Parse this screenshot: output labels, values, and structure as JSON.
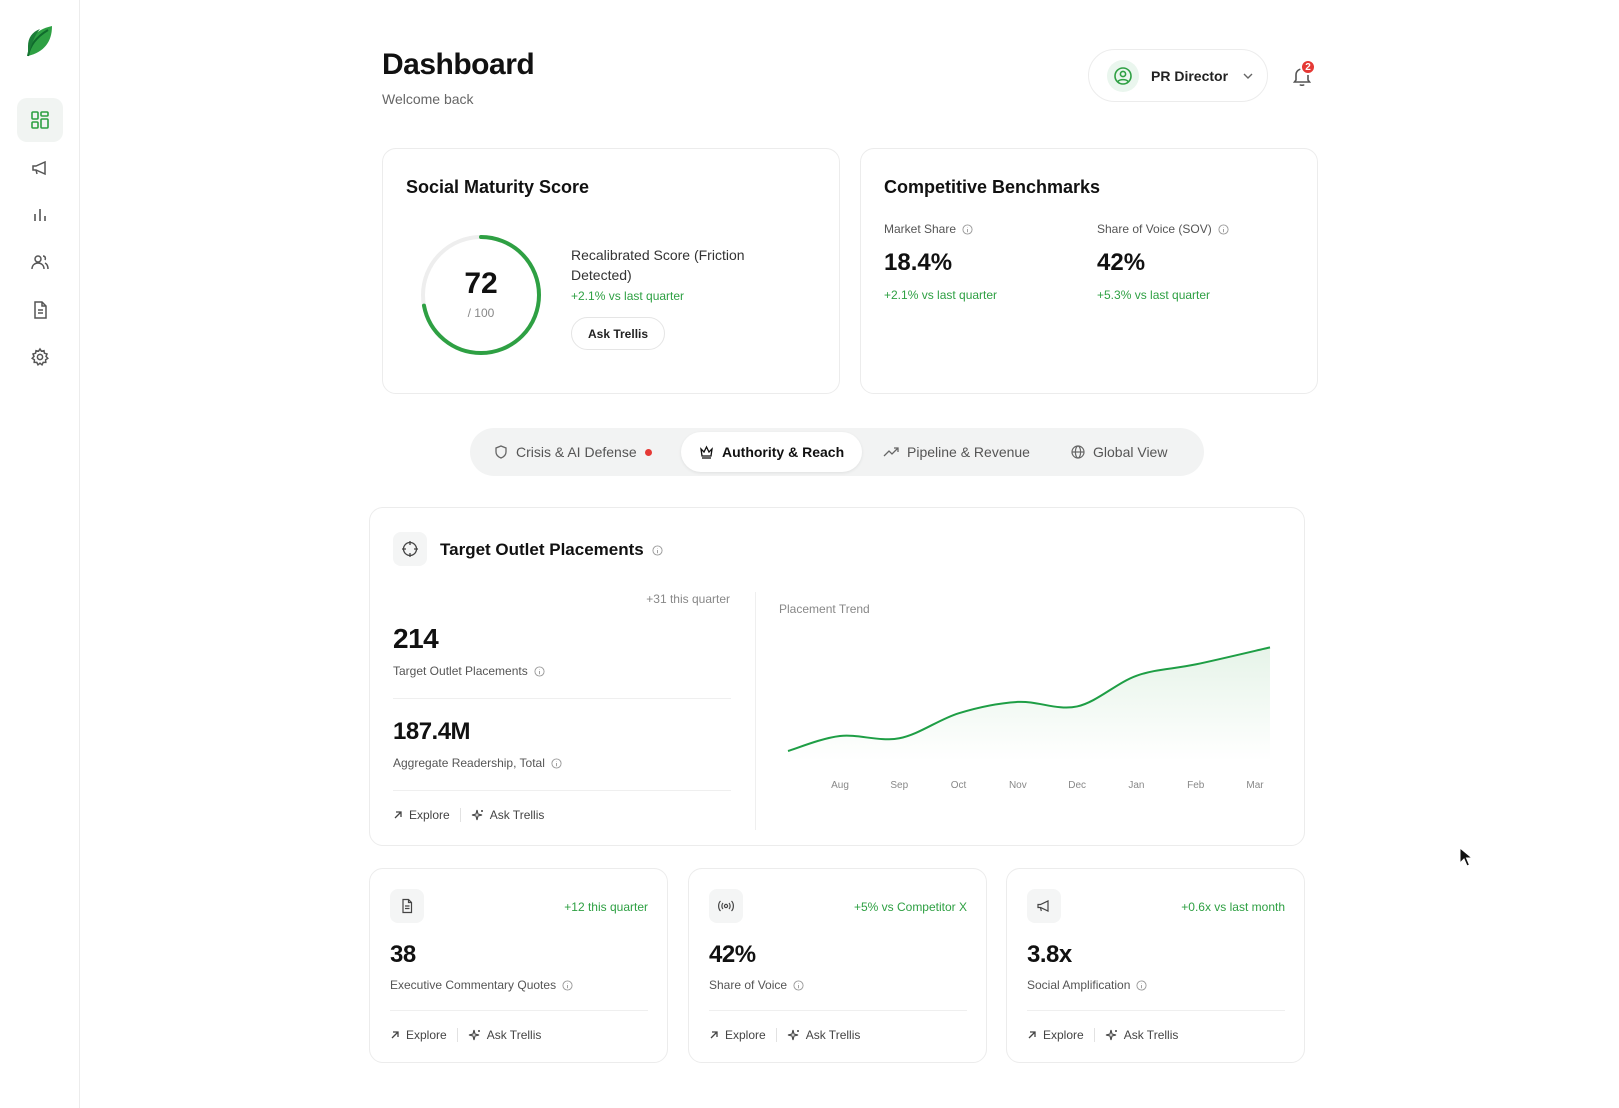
{
  "header": {
    "title": "Dashboard",
    "subtitle": "Welcome back"
  },
  "user": {
    "role": "PR Director",
    "notification_count": "2"
  },
  "sidebar": {
    "items": [
      "dashboard-icon",
      "megaphone-icon",
      "bar-chart-icon",
      "users-icon",
      "document-icon",
      "gear-icon"
    ],
    "active_index": 0
  },
  "maturity": {
    "title": "Social Maturity Score",
    "score": "72",
    "max": "/ 100",
    "score_fraction": 0.72,
    "label": "Recalibrated Score (Friction Detected)",
    "change": "+2.1% vs last quarter",
    "ask_label": "Ask Trellis"
  },
  "benchmarks": {
    "title": "Competitive Benchmarks",
    "items": [
      {
        "label": "Market Share",
        "value": "18.4%",
        "change": "+2.1% vs last quarter"
      },
      {
        "label": "Share of Voice (SOV)",
        "value": "42%",
        "change": "+5.3% vs last quarter"
      }
    ]
  },
  "tabs": [
    {
      "label": "Crisis & AI Defense"
    },
    {
      "label": "Authority & Reach"
    },
    {
      "label": "Pipeline & Revenue"
    },
    {
      "label": "Global View"
    }
  ],
  "placements": {
    "title": "Target Outlet Placements",
    "quarter_change": "+31 this quarter",
    "primary_value": "214",
    "primary_label": "Target Outlet Placements",
    "secondary_value": "187.4M",
    "secondary_label": "Aggregate Readership, Total",
    "explore_label": "Explore",
    "ask_label": "Ask Trellis"
  },
  "chart_data": {
    "type": "area",
    "title": "Placement Trend",
    "categories": [
      "Aug",
      "Sep",
      "Oct",
      "Nov",
      "Dec",
      "Jan",
      "Feb",
      "Mar"
    ],
    "series": [
      {
        "values": [
          22,
          20,
          42,
          52,
          48,
          75,
          85,
          100
        ]
      }
    ],
    "ylim": [
      0,
      110
    ],
    "grid": false,
    "line_color": "#1e9e45"
  },
  "small_cards": [
    {
      "icon": "document-icon",
      "change": "+12 this quarter",
      "value": "38",
      "label": "Executive Commentary Quotes",
      "explore_label": "Explore",
      "ask_label": "Ask Trellis"
    },
    {
      "icon": "broadcast-icon",
      "change": "+5% vs Competitor X",
      "value": "42%",
      "label": "Share of Voice",
      "explore_label": "Explore",
      "ask_label": "Ask Trellis"
    },
    {
      "icon": "megaphone-icon",
      "change": "+0.6x vs last month",
      "value": "3.8x",
      "label": "Social Amplification",
      "explore_label": "Explore",
      "ask_label": "Ask Trellis"
    }
  ],
  "colors": {
    "accent": "#2ea043",
    "badge": "#e53935"
  }
}
